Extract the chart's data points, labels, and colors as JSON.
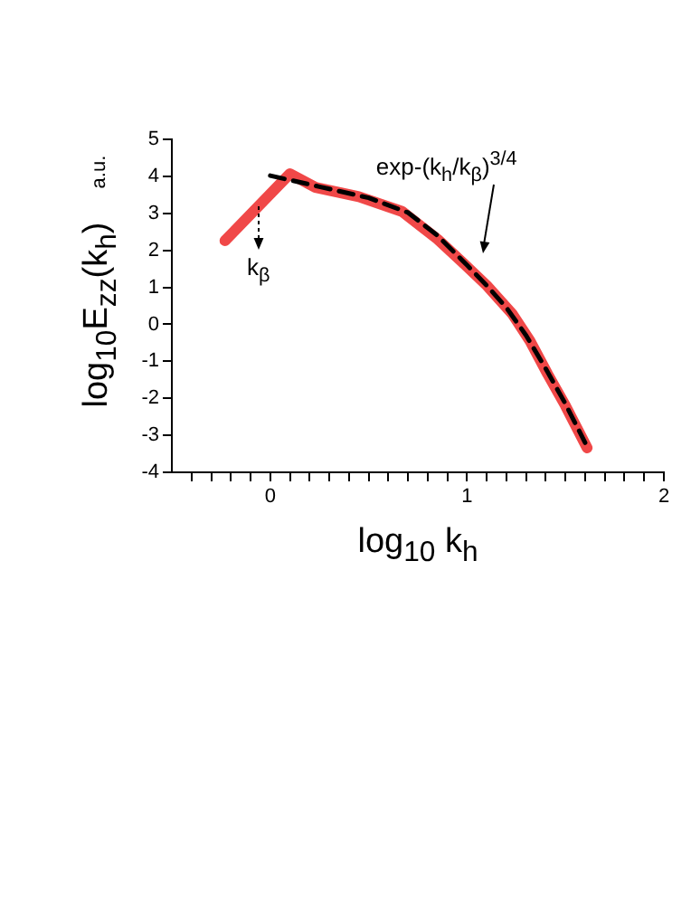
{
  "chart_data": {
    "type": "line",
    "xlabel": "log$_{10}$ k$_{h}$",
    "ylabel": "log$_{10}$E$_{zz}$(k$_{h}$)",
    "series": [
      {
        "color": "#f04848",
        "x": [
          -0.23,
          0.1,
          0.23,
          0.45,
          0.67,
          0.85,
          0.98,
          1.1,
          1.23,
          1.32,
          1.41,
          1.5,
          1.61
        ],
        "values": [
          2.26,
          4.07,
          3.7,
          3.45,
          3.05,
          2.3,
          1.66,
          1.05,
          0.28,
          -0.45,
          -1.35,
          -2.2,
          -3.34
        ]
      },
      {
        "color": "#000000",
        "line_style": "dashed",
        "x": [
          0,
          0.25,
          0.5,
          0.7,
          0.85,
          1.0,
          1.1,
          1.2,
          1.3,
          1.4,
          1.5,
          1.6
        ],
        "values": [
          4.02,
          3.72,
          3.42,
          3.02,
          2.4,
          1.6,
          1.05,
          0.45,
          -0.3,
          -1.2,
          -2.15,
          -3.2
        ]
      }
    ],
    "xlim": [
      -0.5,
      2
    ],
    "ylim": [
      -4,
      5
    ],
    "xticks": [
      {
        "value": -0.4,
        "label": null
      },
      {
        "value": -0.3,
        "label": null
      },
      {
        "value": -0.2,
        "label": null
      },
      {
        "value": -0.1,
        "label": null
      },
      0,
      {
        "value": 0.1,
        "label": null
      },
      {
        "value": 0.2,
        "label": null
      },
      {
        "value": 0.3,
        "label": null
      },
      {
        "value": 0.4,
        "label": null
      },
      {
        "value": 0.5,
        "label": null
      },
      {
        "value": 0.6,
        "label": null
      },
      {
        "value": 0.7,
        "label": null
      },
      {
        "value": 0.8,
        "label": null
      },
      {
        "value": 0.9,
        "label": null
      },
      1,
      {
        "value": 1.1,
        "label": null
      },
      {
        "value": 1.2,
        "label": null
      },
      {
        "value": 1.3,
        "label": null
      },
      {
        "value": 1.4,
        "label": null
      },
      {
        "value": 1.5,
        "label": null
      },
      {
        "value": 1.6,
        "label": null
      },
      {
        "value": 1.7,
        "label": null
      },
      {
        "value": 1.8,
        "label": null
      },
      {
        "value": 1.9,
        "label": null
      },
      2
    ],
    "yticks": [
      -4,
      -3,
      -2,
      -1,
      0,
      1,
      2,
      3,
      4,
      5
    ],
    "grid": false,
    "legend": false,
    "marker": "none",
    "annotations": [
      "exp-(k$_{h}$/k$_{β}$)$^{3/4}$",
      "k$_{β}$",
      "a.u."
    ]
  }
}
